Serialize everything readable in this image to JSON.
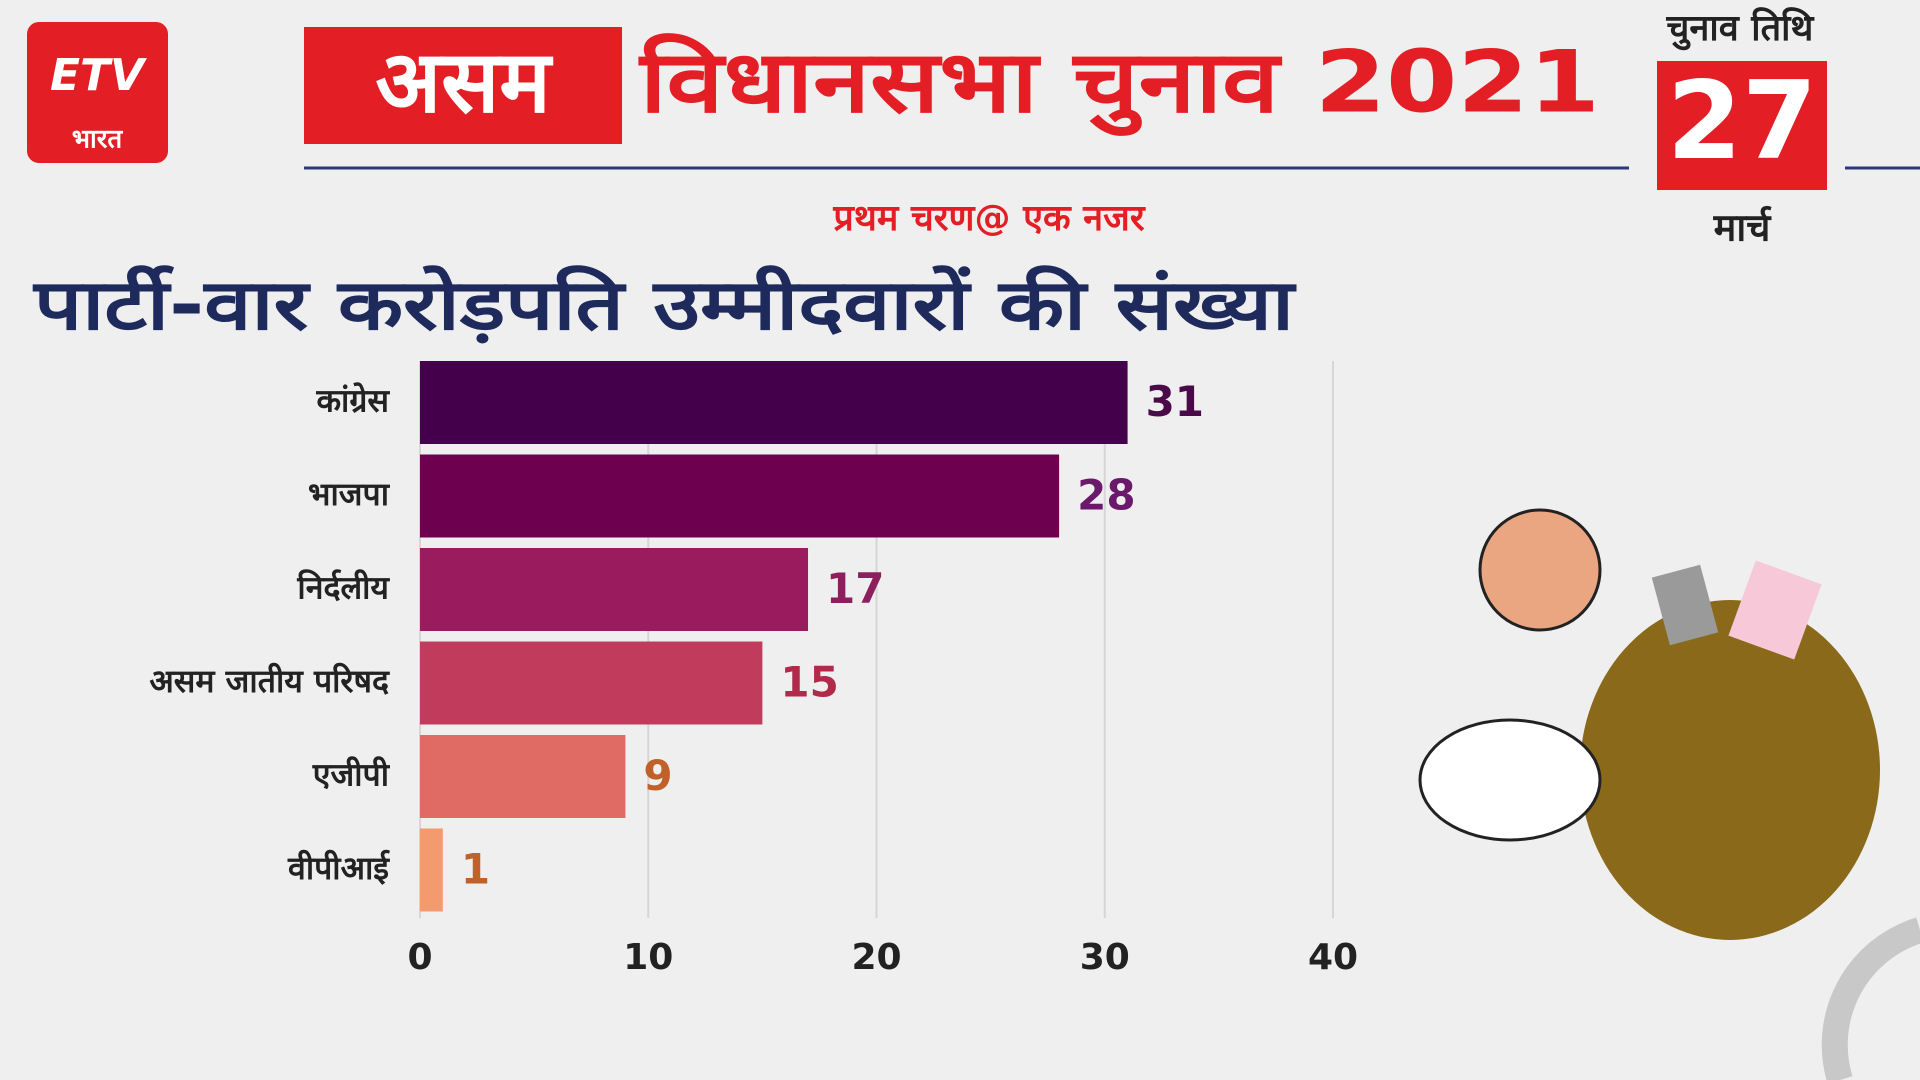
{
  "logo": {
    "brand": "ETV",
    "sub": "भारत"
  },
  "header": {
    "title_highlight": "असम",
    "title": "विधानसभा चुनाव 2021",
    "subtitle": "प्रथम चरण@ एक नजर",
    "date_label": "चुनाव तिथि",
    "date_day": "27",
    "date_month": "मार्च"
  },
  "chart_data": {
    "type": "bar",
    "orientation": "horizontal",
    "title": "पार्टी-वार करोड़पति उम्मीदवारों की संख्या",
    "categories": [
      "कांग्रेस",
      "भाजपा",
      "निर्दलीय",
      "असम जातीय परिषद",
      "एजीपी",
      "वीपीआई"
    ],
    "values": [
      31,
      28,
      17,
      15,
      9,
      1
    ],
    "colors": [
      "#44004a",
      "#6e0050",
      "#9b1c5e",
      "#c13c5c",
      "#e06a64",
      "#f39a6e"
    ],
    "label_colors": [
      "#4a0a4a",
      "#6b1a6b",
      "#8e1f5e",
      "#b02a4a",
      "#c0612a",
      "#c0612a"
    ],
    "xlim": [
      0,
      40
    ],
    "xticks": [
      0,
      10,
      20,
      30,
      40
    ],
    "grid": true
  }
}
